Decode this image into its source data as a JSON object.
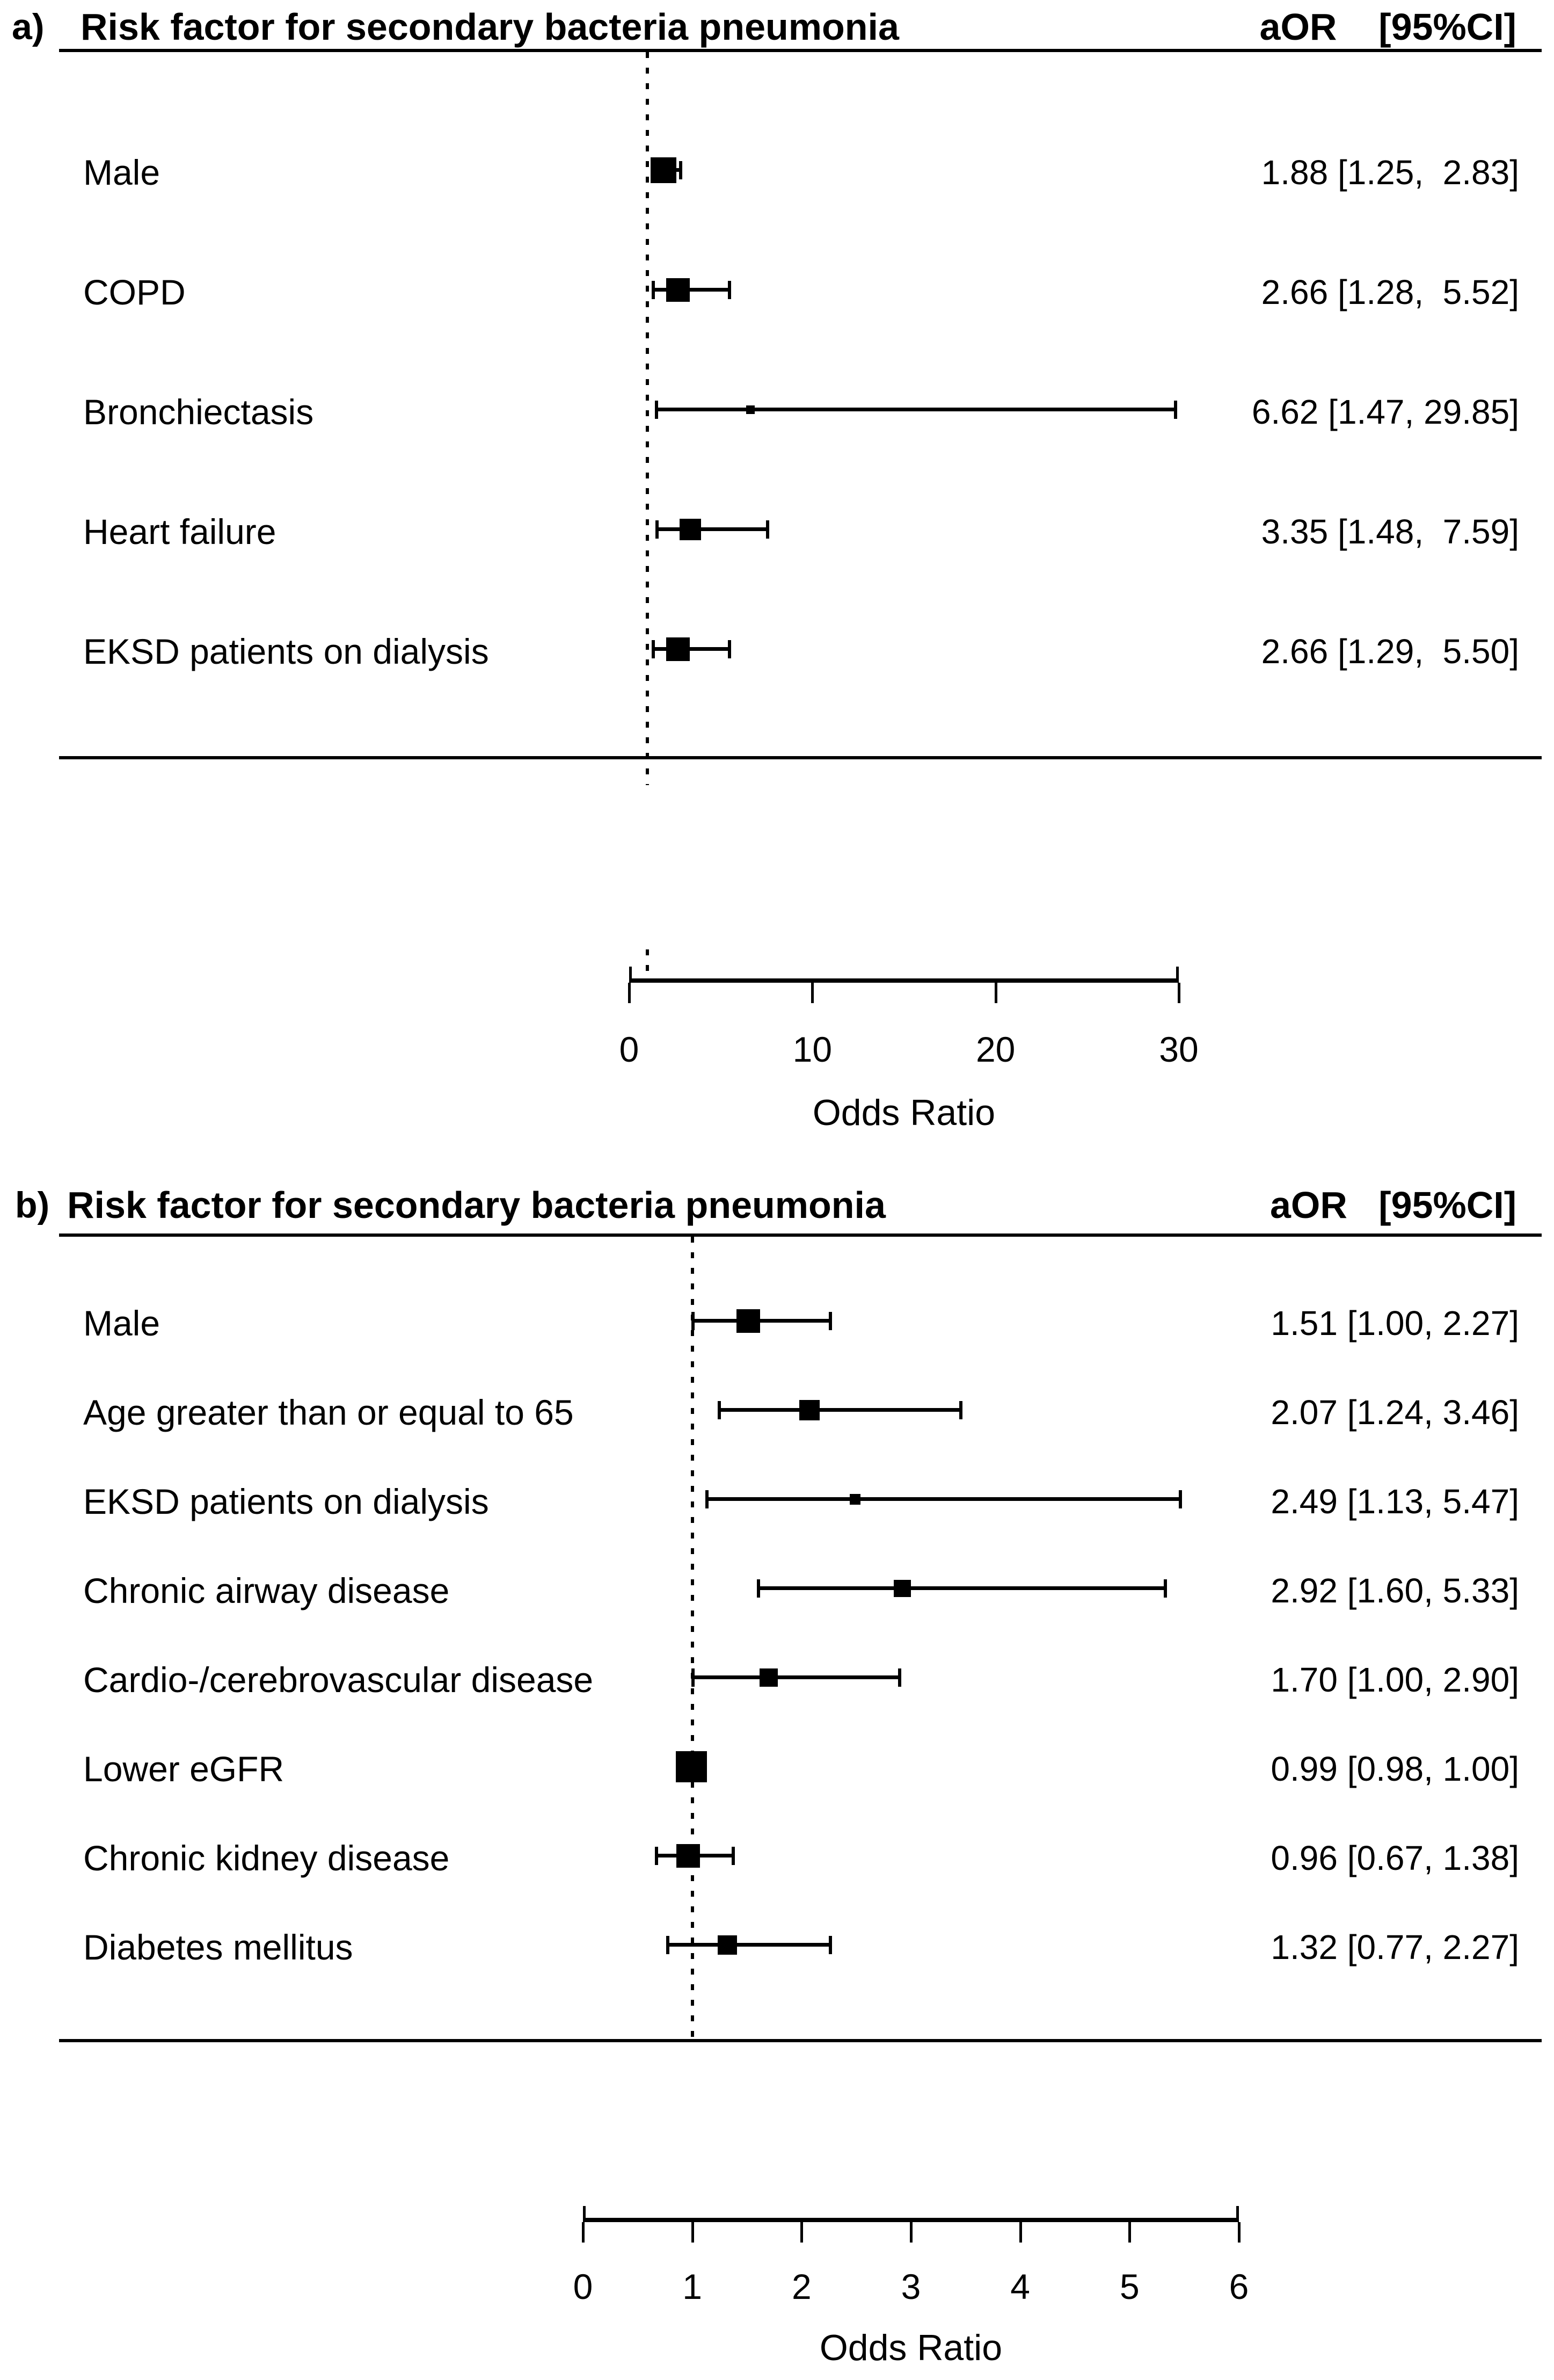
{
  "chart_data": [
    {
      "type": "scatter",
      "subtype": "forest-plot",
      "panel_label": "a)",
      "title": "Risk factor for secondary bacteria pneumonia",
      "columns_header": "aOR    [95%CI]",
      "xlabel": "Odds Ratio",
      "xlim": [
        0,
        30
      ],
      "xticks": [
        0,
        10,
        20,
        30
      ],
      "reference_line_x": 1,
      "legend": "none",
      "rows": [
        {
          "label": "Male",
          "aor": 1.88,
          "ci_low": 1.25,
          "ci_high": 2.83,
          "display": "1.88 [1.25,  2.83]",
          "marker_size": 48
        },
        {
          "label": "COPD",
          "aor": 2.66,
          "ci_low": 1.28,
          "ci_high": 5.52,
          "display": "2.66 [1.28,  5.52]",
          "marker_size": 44
        },
        {
          "label": "Bronchiectasis",
          "aor": 6.62,
          "ci_low": 1.47,
          "ci_high": 29.85,
          "display": "6.62 [1.47, 29.85]",
          "marker_size": 16
        },
        {
          "label": "Heart failure",
          "aor": 3.35,
          "ci_low": 1.48,
          "ci_high": 7.59,
          "display": "3.35 [1.48,  7.59]",
          "marker_size": 40
        },
        {
          "label": "EKSD patients on dialysis",
          "aor": 2.66,
          "ci_low": 1.29,
          "ci_high": 5.5,
          "display": "2.66 [1.29,  5.50]",
          "marker_size": 44
        }
      ]
    },
    {
      "type": "scatter",
      "subtype": "forest-plot",
      "panel_label": "b)",
      "title": "Risk factor for secondary bacteria pneumonia",
      "columns_header": "aOR   [95%CI]",
      "xlabel": "Odds Ratio",
      "xlim": [
        0,
        6
      ],
      "xticks": [
        0,
        1,
        2,
        3,
        4,
        5,
        6
      ],
      "reference_line_x": 1,
      "legend": "none",
      "rows": [
        {
          "label": "Male",
          "aor": 1.51,
          "ci_low": 1.0,
          "ci_high": 2.27,
          "display": "1.51 [1.00, 2.27]",
          "marker_size": 44
        },
        {
          "label": "Age greater than or equal to 65",
          "aor": 2.07,
          "ci_low": 1.24,
          "ci_high": 3.46,
          "display": "2.07 [1.24, 3.46]",
          "marker_size": 38
        },
        {
          "label": "EKSD patients on dialysis",
          "aor": 2.49,
          "ci_low": 1.13,
          "ci_high": 5.47,
          "display": "2.49 [1.13, 5.47]",
          "marker_size": 20
        },
        {
          "label": "Chronic airway disease",
          "aor": 2.92,
          "ci_low": 1.6,
          "ci_high": 5.33,
          "display": "2.92 [1.60, 5.33]",
          "marker_size": 32
        },
        {
          "label": "Cardio-/cerebrovascular disease",
          "aor": 1.7,
          "ci_low": 1.0,
          "ci_high": 2.9,
          "display": "1.70 [1.00, 2.90]",
          "marker_size": 34
        },
        {
          "label": "Lower eGFR",
          "aor": 0.99,
          "ci_low": 0.98,
          "ci_high": 1.0,
          "display": "0.99 [0.98, 1.00]",
          "marker_size": 58
        },
        {
          "label": "Chronic kidney disease",
          "aor": 0.96,
          "ci_low": 0.67,
          "ci_high": 1.38,
          "display": "0.96 [0.67, 1.38]",
          "marker_size": 44
        },
        {
          "label": "Diabetes mellitus",
          "aor": 1.32,
          "ci_low": 0.77,
          "ci_high": 2.27,
          "display": "1.32 [0.77, 2.27]",
          "marker_size": 36
        }
      ]
    }
  ],
  "colors": {
    "foreground": "#000000",
    "background": "#ffffff"
  }
}
